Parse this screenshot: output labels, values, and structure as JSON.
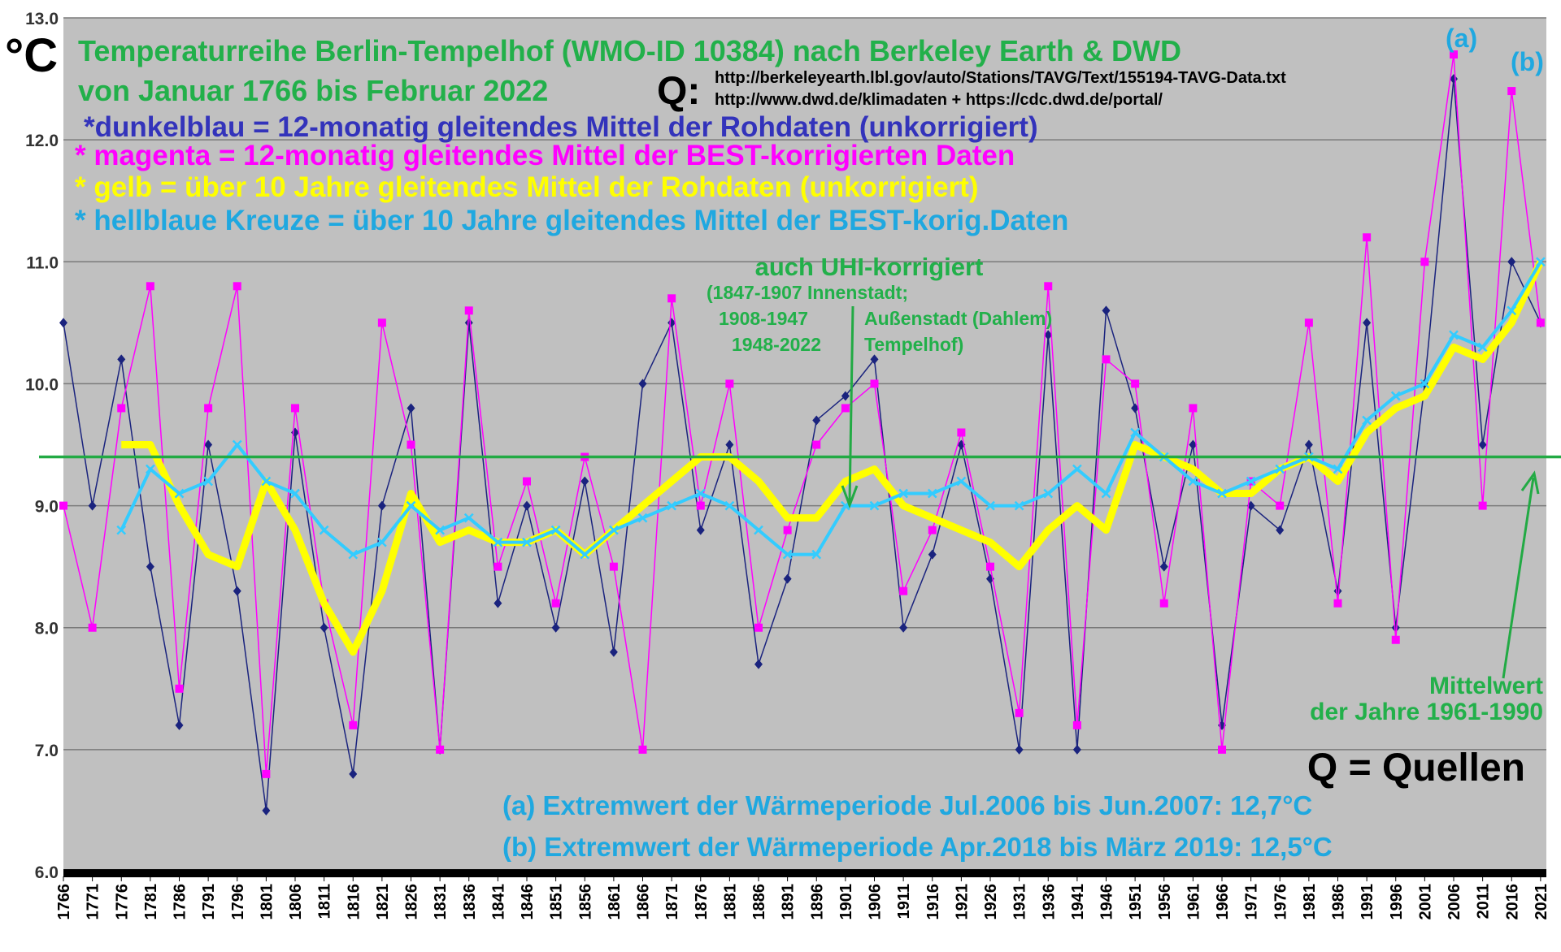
{
  "chart_data": {
    "type": "line",
    "title": "Temperaturreihe Berlin-Tempelhof (WMO-ID 10384) nach Berkeley Earth & DWD",
    "subtitle": "von Januar 1766 bis Februar 2022",
    "y_label": "°C",
    "x": [
      1766,
      1771,
      1776,
      1781,
      1786,
      1791,
      1796,
      1801,
      1806,
      1811,
      1816,
      1821,
      1826,
      1831,
      1836,
      1841,
      1846,
      1851,
      1856,
      1861,
      1866,
      1871,
      1876,
      1881,
      1886,
      1891,
      1896,
      1901,
      1906,
      1911,
      1916,
      1921,
      1926,
      1931,
      1936,
      1941,
      1946,
      1951,
      1956,
      1961,
      1966,
      1971,
      1976,
      1981,
      1986,
      1991,
      1996,
      2001,
      2006,
      2011,
      2016,
      2021
    ],
    "xlim": [
      1766,
      2022
    ],
    "xticks": [
      1766,
      1771,
      1776,
      1781,
      1786,
      1791,
      1796,
      1801,
      1806,
      1811,
      1816,
      1821,
      1826,
      1831,
      1836,
      1841,
      1846,
      1851,
      1856,
      1861,
      1866,
      1871,
      1876,
      1881,
      1886,
      1891,
      1896,
      1901,
      1906,
      1911,
      1916,
      1921,
      1926,
      1931,
      1936,
      1941,
      1946,
      1951,
      1956,
      1961,
      1966,
      1971,
      1976,
      1981,
      1986,
      1991,
      1996,
      2001,
      2006,
      2011,
      2016,
      2021
    ],
    "ylim": [
      6,
      13
    ],
    "yticks": [
      {
        "value": 6,
        "label": "6.0"
      },
      {
        "value": 7,
        "label": "7.0"
      },
      {
        "value": 8,
        "label": "8.0"
      },
      {
        "value": 9,
        "label": "9.0"
      },
      {
        "value": 10,
        "label": "10.0"
      },
      {
        "value": 11,
        "label": "11.0"
      },
      {
        "value": 12,
        "label": "12.0"
      },
      {
        "value": 13,
        "label": "13.0"
      }
    ],
    "grid": true,
    "reference_line": {
      "value": 9.4,
      "color": "#22aa44"
    },
    "series": [
      {
        "name": "*dunkelblau = 12-monatig gleitendes Mittel der Rohdaten (unkorrigiert)",
        "color": "#1a237e",
        "marker": "diamond",
        "values": [
          10.5,
          9.0,
          10.2,
          8.5,
          7.2,
          9.5,
          8.3,
          6.5,
          9.6,
          8.0,
          6.8,
          9.0,
          9.8,
          7.0,
          10.5,
          8.2,
          9.0,
          8.0,
          9.2,
          7.8,
          10.0,
          10.5,
          8.8,
          9.5,
          7.7,
          8.4,
          9.7,
          9.9,
          10.2,
          8.0,
          8.6,
          9.5,
          8.4,
          7.0,
          10.4,
          7.0,
          10.6,
          9.8,
          8.5,
          9.5,
          7.2,
          9.0,
          8.8,
          9.5,
          8.3,
          10.5,
          8.0,
          10.0,
          12.5,
          9.5,
          11.0,
          10.5
        ]
      },
      {
        "name": "* magenta = 12-monatig gleitendes Mittel der BEST-korrigierten Daten",
        "color": "#ff00ff",
        "marker": "square",
        "values": [
          9.0,
          8.0,
          9.8,
          10.8,
          7.5,
          9.8,
          10.8,
          6.8,
          9.8,
          8.2,
          7.2,
          10.5,
          9.5,
          7.0,
          10.6,
          8.5,
          9.2,
          8.2,
          9.4,
          8.5,
          7.0,
          10.7,
          9.0,
          10.0,
          8.0,
          8.8,
          9.5,
          9.8,
          10.0,
          8.3,
          8.8,
          9.6,
          8.5,
          7.3,
          10.8,
          7.2,
          10.2,
          10.0,
          8.2,
          9.8,
          7.0,
          9.2,
          9.0,
          10.5,
          8.2,
          11.2,
          7.9,
          11.0,
          12.7,
          9.0,
          12.4,
          10.5
        ]
      },
      {
        "name": "* gelb = über 10 Jahre gleitendes Mittel der Rohdaten (unkorrigiert)",
        "color": "#ffff00",
        "marker": "none",
        "values": [
          null,
          null,
          9.5,
          9.5,
          9.0,
          8.6,
          8.5,
          9.2,
          8.8,
          8.2,
          7.8,
          8.3,
          9.1,
          8.7,
          8.8,
          8.7,
          8.7,
          8.8,
          8.6,
          8.8,
          9.0,
          9.2,
          9.4,
          9.4,
          9.2,
          8.9,
          8.9,
          9.2,
          9.3,
          9.0,
          8.9,
          8.8,
          8.7,
          8.5,
          8.8,
          9.0,
          8.8,
          9.5,
          9.4,
          9.3,
          9.1,
          9.1,
          9.3,
          9.4,
          9.2,
          9.6,
          9.8,
          9.9,
          10.3,
          10.2,
          10.5,
          11.0
        ]
      },
      {
        "name": "* hellblaue Kreuze = über 10 Jahre gleitendes Mittel der BEST-korig.Daten",
        "color": "#33ccff",
        "marker": "cross",
        "values": [
          null,
          null,
          8.8,
          9.3,
          9.1,
          9.2,
          9.5,
          9.2,
          9.1,
          8.8,
          8.6,
          8.7,
          9.0,
          8.8,
          8.9,
          8.7,
          8.7,
          8.8,
          8.6,
          8.8,
          8.9,
          9.0,
          9.1,
          9.0,
          8.8,
          8.6,
          8.6,
          9.0,
          9.0,
          9.1,
          9.1,
          9.2,
          9.0,
          9.0,
          9.1,
          9.3,
          9.1,
          9.6,
          9.4,
          9.2,
          9.1,
          9.2,
          9.3,
          9.4,
          9.3,
          9.7,
          9.9,
          10.0,
          10.4,
          10.3,
          10.6,
          11.0
        ]
      }
    ],
    "annotations": [
      "Q:",
      "http://berkeleyearth.lbl.gov/auto/Stations/TAVG/Text/155194-TAVG-Data.txt",
      "http://www.dwd.de/klimadaten + https://cdc.dwd.de/portal/",
      "auch UHI-korrigiert",
      "(1847-1907  Innenstadt;",
      "1908-1947",
      "Außenstadt (Dahlem)",
      "1948-2022",
      "Tempelhof)",
      "Mittelwert",
      "der Jahre 1961-1990",
      "Q = Quellen",
      "(a) Extremwert der Wärmeperiode Jul.2006 bis Jun.2007: 12,7°C",
      "(b) Extremwert der Wärmeperiode Apr.2018 bis März 2019: 12,5°C",
      "(a)",
      "(b)"
    ]
  }
}
